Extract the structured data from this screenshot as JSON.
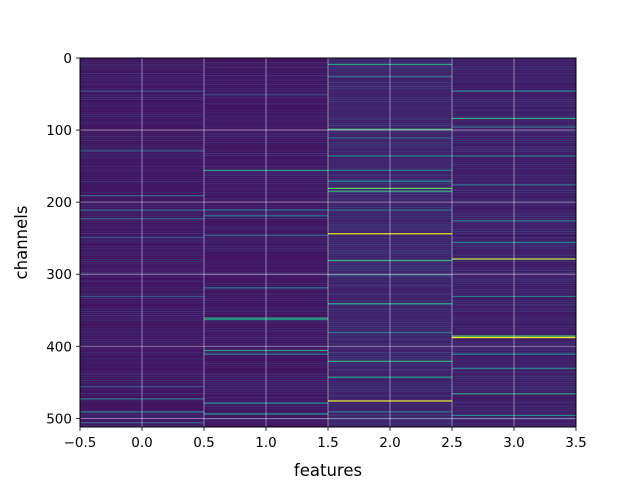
{
  "chart_data": {
    "type": "heatmap",
    "xlabel": "features",
    "ylabel": "channels",
    "xlim": [
      -0.5,
      3.5
    ],
    "ylim": [
      512,
      0
    ],
    "x_ticks": [
      -0.5,
      0.0,
      0.5,
      1.0,
      1.5,
      2.0,
      2.5,
      3.0,
      3.5
    ],
    "x_tick_labels": [
      "−0.5",
      "0.0",
      "0.5",
      "1.0",
      "1.5",
      "2.0",
      "2.5",
      "3.0",
      "3.5"
    ],
    "y_ticks": [
      0,
      100,
      200,
      300,
      400,
      500
    ],
    "y_tick_labels": [
      "0",
      "100",
      "200",
      "300",
      "400",
      "500"
    ],
    "grid": true,
    "colormap": "viridis",
    "colormap_stops": [
      "#440154",
      "#3b528b",
      "#21918c",
      "#5ec962",
      "#fde725"
    ],
    "columns": [
      {
        "feature": 0,
        "base_level": 0.06,
        "bright_rows": [
          {
            "channel": 45,
            "value": 0.25
          },
          {
            "channel": 128,
            "value": 0.3
          },
          {
            "channel": 190,
            "value": 0.3
          },
          {
            "channel": 210,
            "value": 0.35
          },
          {
            "channel": 222,
            "value": 0.3
          },
          {
            "channel": 248,
            "value": 0.25
          },
          {
            "channel": 330,
            "value": 0.25
          },
          {
            "channel": 455,
            "value": 0.25
          },
          {
            "channel": 472,
            "value": 0.35
          },
          {
            "channel": 490,
            "value": 0.4
          },
          {
            "channel": 505,
            "value": 0.3
          }
        ]
      },
      {
        "feature": 1,
        "base_level": 0.06,
        "bright_rows": [
          {
            "channel": 50,
            "value": 0.2
          },
          {
            "channel": 155,
            "value": 0.55
          },
          {
            "channel": 210,
            "value": 0.4
          },
          {
            "channel": 218,
            "value": 0.35
          },
          {
            "channel": 245,
            "value": 0.3
          },
          {
            "channel": 318,
            "value": 0.35
          },
          {
            "channel": 360,
            "value": 0.6
          },
          {
            "channel": 362,
            "value": 0.5
          },
          {
            "channel": 405,
            "value": 0.55
          },
          {
            "channel": 410,
            "value": 0.4
          },
          {
            "channel": 478,
            "value": 0.45
          },
          {
            "channel": 493,
            "value": 0.5
          }
        ]
      },
      {
        "feature": 2,
        "base_level": 0.1,
        "bright_rows": [
          {
            "channel": 8,
            "value": 0.55
          },
          {
            "channel": 25,
            "value": 0.35
          },
          {
            "channel": 98,
            "value": 0.65
          },
          {
            "channel": 110,
            "value": 0.3
          },
          {
            "channel": 135,
            "value": 0.45
          },
          {
            "channel": 155,
            "value": 0.4
          },
          {
            "channel": 170,
            "value": 0.45
          },
          {
            "channel": 180,
            "value": 0.75
          },
          {
            "channel": 184,
            "value": 0.6
          },
          {
            "channel": 210,
            "value": 0.35
          },
          {
            "channel": 243,
            "value": 0.95
          },
          {
            "channel": 280,
            "value": 0.6
          },
          {
            "channel": 300,
            "value": 0.35
          },
          {
            "channel": 340,
            "value": 0.55
          },
          {
            "channel": 380,
            "value": 0.35
          },
          {
            "channel": 420,
            "value": 0.6
          },
          {
            "channel": 442,
            "value": 0.5
          },
          {
            "channel": 475,
            "value": 0.95
          },
          {
            "channel": 490,
            "value": 0.35
          }
        ]
      },
      {
        "feature": 3,
        "base_level": 0.08,
        "bright_rows": [
          {
            "channel": 45,
            "value": 0.45
          },
          {
            "channel": 83,
            "value": 0.6
          },
          {
            "channel": 95,
            "value": 0.35
          },
          {
            "channel": 135,
            "value": 0.4
          },
          {
            "channel": 175,
            "value": 0.35
          },
          {
            "channel": 225,
            "value": 0.4
          },
          {
            "channel": 255,
            "value": 0.45
          },
          {
            "channel": 278,
            "value": 0.9
          },
          {
            "channel": 330,
            "value": 0.4
          },
          {
            "channel": 385,
            "value": 0.7
          },
          {
            "channel": 387,
            "value": 1.0
          },
          {
            "channel": 410,
            "value": 0.45
          },
          {
            "channel": 430,
            "value": 0.4
          },
          {
            "channel": 465,
            "value": 0.55
          },
          {
            "channel": 495,
            "value": 0.45
          }
        ]
      }
    ]
  }
}
